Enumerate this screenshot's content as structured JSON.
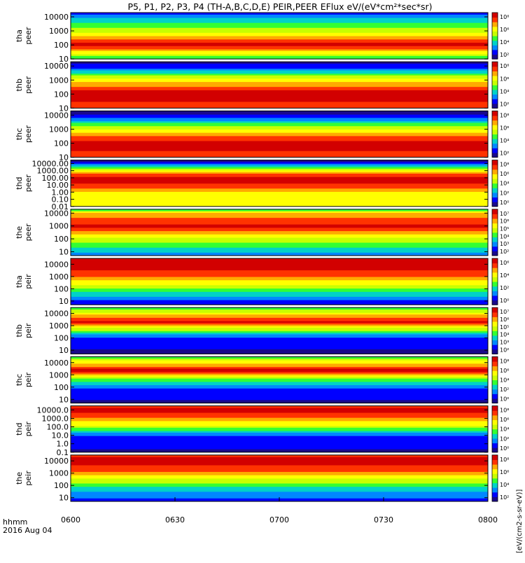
{
  "chart_data": {
    "type": "heatmap",
    "title": "P5, P1, P2, P3, P4 (TH-A,B,C,D,E) PEIR,PEER EFlux eV/(eV*cm²*sec*sr)",
    "x_ticks": [
      "0600",
      "0630",
      "0700",
      "0730",
      "0800"
    ],
    "x_range": [
      "06:00",
      "08:00"
    ],
    "x_corner_label": "hhmm",
    "date_label": "2016 Aug 04",
    "colorbar_label": "[eV/(cm2-s-sr-eV)]",
    "colorbar_scale": "log",
    "colors": {
      "palette": [
        "#1a0a8a",
        "#0000ff",
        "#0088ff",
        "#00d2c8",
        "#33ff33",
        "#c8ff00",
        "#ffff00",
        "#ffaa00",
        "#ff3300",
        "#d20000"
      ],
      "background": "#ffffff",
      "fill_black": "#000000"
    },
    "panels": [
      {
        "probe": "tha",
        "product": "peer",
        "ylabel_line1": "tha",
        "ylabel_line2": "peer",
        "y_scale": "log",
        "y_range": [
          10,
          20000
        ],
        "y_ticks": [
          "10000",
          "1000",
          "100",
          "10"
        ],
        "cb_ticks": [
          "10⁸",
          "10⁶",
          "10⁴",
          "10²"
        ],
        "energy_levels_eV": [
          10,
          100,
          1000,
          10000,
          20000
        ],
        "intensity_profile_log10": [
          6.2,
          7.6,
          6.6,
          5.9,
          5.5
        ],
        "dominant_band_eV": [
          10,
          80
        ]
      },
      {
        "probe": "thb",
        "product": "peer",
        "ylabel_line1": "thb",
        "ylabel_line2": "peer",
        "y_scale": "log",
        "y_range": [
          10,
          20000
        ],
        "y_ticks": [
          "10000",
          "1000",
          "100",
          "10"
        ],
        "cb_ticks": [
          "10⁸",
          "10⁶",
          "10⁴",
          "10²"
        ],
        "energy_levels_eV": [
          10,
          100,
          1000,
          10000,
          20000
        ],
        "intensity_profile_log10": [
          6.8,
          7.6,
          6.0,
          3.4,
          3.0
        ],
        "dominant_band_eV": [
          30,
          200
        ]
      },
      {
        "probe": "thc",
        "product": "peer",
        "ylabel_line1": "thc",
        "ylabel_line2": "peer",
        "y_scale": "log",
        "y_range": [
          10,
          20000
        ],
        "y_ticks": [
          "10000",
          "1000",
          "100",
          "10"
        ],
        "cb_ticks": [
          "10⁸",
          "10⁶",
          "10⁴",
          "10²"
        ],
        "energy_levels_eV": [
          10,
          100,
          1000,
          10000,
          20000
        ],
        "intensity_profile_log10": [
          6.6,
          7.6,
          5.4,
          2.6,
          2.2
        ],
        "dominant_band_eV": [
          30,
          200
        ]
      },
      {
        "probe": "thd",
        "product": "peer",
        "ylabel_line1": "thd",
        "ylabel_line2": "peer",
        "y_scale": "log",
        "y_range": [
          0.01,
          30000
        ],
        "y_ticks": [
          "10000.00",
          "1000.00",
          "100.00",
          "10.00",
          "1.00",
          "0.10",
          "0.01"
        ],
        "cb_ticks": [
          "10⁸",
          "10⁶",
          "10⁴",
          "10²",
          "10⁰"
        ],
        "energy_levels_eV": [
          0.01,
          1,
          10,
          100,
          1000,
          10000,
          30000
        ],
        "intensity_profile_log10": [
          6.2,
          6.2,
          7.2,
          7.8,
          6.2,
          3.8,
          3.0
        ],
        "dominant_band_eV": [
          100,
          1000
        ]
      },
      {
        "probe": "the",
        "product": "peer",
        "ylabel_line1": "the",
        "ylabel_line2": "peer",
        "y_scale": "log",
        "y_range": [
          5,
          20000
        ],
        "y_ticks": [
          "10000",
          "1000",
          "100",
          "10"
        ],
        "cb_ticks": [
          "10⁷",
          "10⁶",
          "10⁵",
          "10⁴",
          "10³",
          "10²"
        ],
        "energy_levels_eV": [
          5,
          100,
          1000,
          10000,
          20000
        ],
        "intensity_profile_log10": [
          6.0,
          6.4,
          6.8,
          6.6,
          6.2
        ],
        "dominant_band_eV": [
          1000,
          10000
        ]
      },
      {
        "probe": "tha",
        "product": "peir",
        "ylabel_line1": "tha",
        "ylabel_line2": "peir",
        "y_scale": "log",
        "y_range": [
          5,
          30000
        ],
        "y_ticks": [
          "10000",
          "1000",
          "100",
          "10"
        ],
        "cb_ticks": [
          "10⁶",
          "10⁴",
          "10²",
          "10⁰"
        ],
        "energy_levels_eV": [
          5,
          100,
          1000,
          10000,
          30000
        ],
        "intensity_profile_log10": [
          2.6,
          3.6,
          4.6,
          5.0,
          4.8
        ],
        "dominant_band_eV": [
          3000,
          20000
        ]
      },
      {
        "probe": "thb",
        "product": "peir",
        "ylabel_line1": "thb",
        "ylabel_line2": "peir",
        "y_scale": "log",
        "y_range": [
          5,
          30000
        ],
        "y_ticks": [
          "10000",
          "1000",
          "100",
          "10"
        ],
        "cb_ticks": [
          "10⁷",
          "10⁶",
          "10⁵",
          "10⁴",
          "10³",
          "10²"
        ],
        "energy_levels_eV": [
          5,
          100,
          1000,
          2000,
          10000,
          30000
        ],
        "intensity_profile_log10": [
          3.0,
          3.4,
          5.6,
          6.8,
          5.4,
          4.6
        ],
        "dominant_band_eV": [
          1500,
          3000
        ]
      },
      {
        "probe": "thc",
        "product": "peir",
        "ylabel_line1": "thc",
        "ylabel_line2": "peir",
        "y_scale": "log",
        "y_range": [
          5,
          30000
        ],
        "y_ticks": [
          "10000",
          "1000",
          "100",
          "10"
        ],
        "cb_ticks": [
          "10⁸",
          "10⁶",
          "10⁴",
          "10²",
          "10⁰"
        ],
        "energy_levels_eV": [
          5,
          100,
          1000,
          2000,
          10000,
          30000
        ],
        "intensity_profile_log10": [
          3.0,
          3.6,
          5.4,
          6.8,
          5.6,
          4.6
        ],
        "dominant_band_eV": [
          1500,
          3000
        ]
      },
      {
        "probe": "thd",
        "product": "peir",
        "ylabel_line1": "thd",
        "ylabel_line2": "peir",
        "y_scale": "log",
        "y_range": [
          0.1,
          30000
        ],
        "y_ticks": [
          "10000.0",
          "1000.0",
          "100.0",
          "10.0",
          "1.0",
          "0.1"
        ],
        "cb_ticks": [
          "10⁸",
          "10⁶",
          "10⁴",
          "10²",
          "10⁰"
        ],
        "energy_levels_eV": [
          0.1,
          10,
          100,
          1000,
          10000,
          30000
        ],
        "intensity_profile_log10": [
          3.8,
          4.2,
          5.6,
          6.4,
          7.2,
          6.8
        ],
        "dominant_band_eV": [
          1000,
          20000
        ]
      },
      {
        "probe": "the",
        "product": "peir",
        "ylabel_line1": "the",
        "ylabel_line2": "peir",
        "y_scale": "log",
        "y_range": [
          5,
          30000
        ],
        "y_ticks": [
          "10000",
          "1000",
          "100",
          "10"
        ],
        "cb_ticks": [
          "10⁸",
          "10⁶",
          "10⁴",
          "10²"
        ],
        "energy_levels_eV": [
          5,
          100,
          1000,
          10000,
          30000
        ],
        "intensity_profile_log10": [
          3.4,
          4.0,
          4.8,
          5.2,
          5.0
        ],
        "dominant_band_eV": [
          3000,
          20000
        ]
      }
    ]
  }
}
